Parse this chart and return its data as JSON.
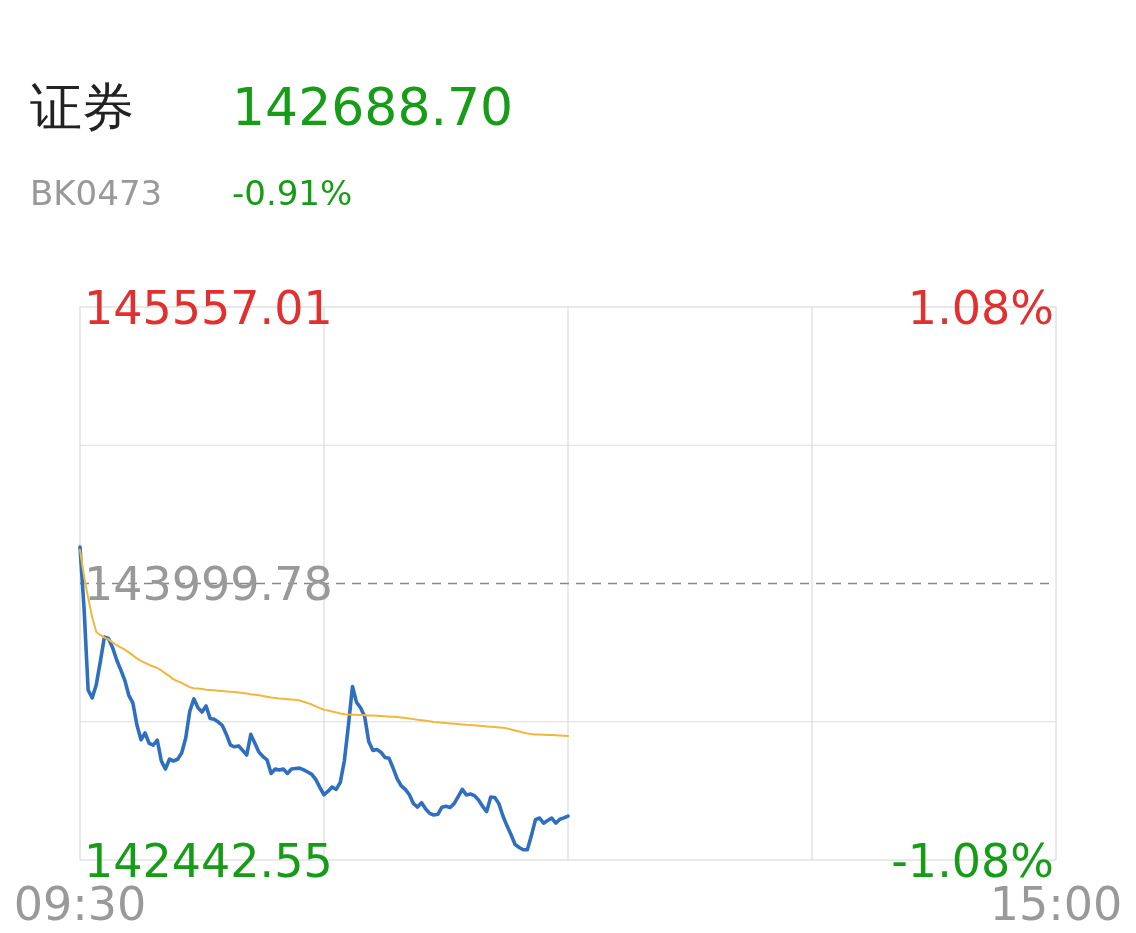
{
  "chart_data": {
    "type": "line",
    "title": "证券",
    "subtitle": "BK0473",
    "annotations": [
      "142688.70",
      "-0.91%"
    ],
    "categories": [
      "09:30",
      null,
      null,
      null,
      null,
      null,
      null,
      null,
      null,
      null,
      null,
      null,
      null,
      null,
      null,
      null,
      null,
      null,
      null,
      null,
      null,
      null,
      null,
      null,
      null,
      null,
      null,
      null,
      null,
      null,
      null,
      null,
      null,
      null,
      null,
      null,
      null,
      null,
      null,
      null,
      null,
      null,
      null,
      null,
      null,
      null,
      null,
      null,
      null,
      null,
      null,
      null,
      null,
      null,
      null,
      null,
      null,
      null,
      null,
      null,
      null,
      null,
      null,
      null,
      null,
      null,
      null,
      null,
      null,
      null,
      null,
      null,
      null,
      null,
      null,
      null,
      null,
      null,
      null,
      null,
      null,
      null,
      null,
      null,
      null,
      null,
      null,
      null,
      null,
      null,
      null,
      null,
      null,
      null,
      null,
      null,
      null,
      null,
      null,
      null,
      null,
      null,
      null,
      null,
      null,
      null,
      null,
      null,
      null,
      null,
      null,
      null,
      null,
      null,
      null,
      null,
      null,
      null,
      null,
      null,
      null,
      null,
      null,
      null,
      null,
      null,
      null,
      null,
      null,
      null,
      null,
      null,
      null,
      null,
      null,
      null,
      null,
      null,
      null,
      null,
      null,
      null,
      null,
      null,
      null,
      null,
      null,
      null,
      null,
      null,
      null,
      null,
      null,
      null,
      null,
      null,
      null,
      null,
      null,
      null,
      null,
      null,
      null,
      null,
      null,
      null,
      null,
      null,
      null,
      null,
      null,
      null,
      null,
      null,
      null,
      null,
      null,
      null,
      null,
      null,
      null,
      null,
      null,
      null,
      null,
      null,
      null,
      null,
      null,
      null,
      null,
      null,
      null,
      null,
      null,
      null,
      null,
      null,
      null,
      null,
      null,
      null,
      null,
      null,
      null,
      null,
      null,
      null,
      null,
      null,
      null,
      null,
      null,
      null,
      null,
      null,
      null,
      null,
      null,
      null,
      null,
      null,
      null,
      null,
      null,
      null,
      null,
      null,
      null,
      null,
      null,
      null,
      null,
      null,
      null,
      null,
      null,
      null,
      null,
      null,
      "15:00"
    ],
    "ylim": [
      142442.55,
      145557.01
    ],
    "yticks": [
      142442.55,
      {
        "value": 143221.17,
        "label": null
      },
      143999.78,
      {
        "value": 144778.4,
        "label": null
      },
      145557.01
    ],
    "y2lim": [
      -1.08,
      1.08
    ],
    "y2ticks": [
      {
        "value": -1.08,
        "label": "-1.08%"
      },
      {
        "value": 1.08,
        "label": "1.08%"
      }
    ],
    "grid": true,
    "ref_lines": [
      {
        "axis": "y",
        "value": 143999.78,
        "line_style": "dashed",
        "color": "#888888"
      }
    ],
    "series": [
      {
        "color": "#2f6fbf",
        "values": [
          144205,
          143860,
          143400,
          143355,
          143430,
          143560,
          143698,
          143690,
          143640,
          143570,
          143515,
          143456,
          143370,
          143327,
          143203,
          143120,
          143158,
          143100,
          143090,
          143118,
          143000,
          142955,
          143010,
          143000,
          143010,
          143045,
          143130,
          143280,
          143350,
          143300,
          143276,
          143310,
          143240,
          143235,
          143220,
          143200,
          143150,
          143090,
          143080,
          143085,
          143060,
          143034,
          143150,
          143100,
          143050,
          143025,
          143006,
          142930,
          142955,
          142949,
          142955,
          142930,
          142955,
          142958,
          142960,
          142950,
          142938,
          142925,
          142895,
          142850,
          142810,
          142830,
          142854,
          142840,
          142880,
          143000,
          143200,
          143420,
          143330,
          143300,
          143250,
          143110,
          143060,
          143065,
          143050,
          143020,
          143015,
          142960,
          142900,
          142860,
          142840,
          142810,
          142760,
          142741,
          142765,
          142730,
          142705,
          142696,
          142700,
          142740,
          142745,
          142738,
          142760,
          142800,
          142840,
          142809,
          142814,
          142805,
          142780,
          142745,
          142715,
          142797,
          142795,
          142760,
          142690,
          142635,
          142585,
          142530,
          142513,
          142500,
          142500,
          142580,
          142670,
          142679,
          142650,
          142665,
          142679,
          142650,
          142672,
          142680,
          142690,
          null,
          null,
          null,
          null,
          null,
          null,
          null,
          null,
          null,
          null,
          null,
          null,
          null,
          null,
          null,
          null,
          null,
          null,
          null,
          null,
          null,
          null,
          null,
          null,
          null,
          null,
          null,
          null,
          null,
          null,
          null,
          null,
          null,
          null,
          null,
          null,
          null,
          null,
          null,
          null,
          null,
          null,
          null,
          null,
          null,
          null,
          null,
          null,
          null,
          null,
          null,
          null,
          null,
          null,
          null,
          null,
          null,
          null,
          null,
          null,
          null,
          null,
          null,
          null,
          null,
          null,
          null,
          null,
          null,
          null,
          null,
          null,
          null,
          null,
          null,
          null,
          null,
          null,
          null,
          null,
          null,
          null,
          null,
          null,
          null,
          null,
          null,
          null,
          null,
          null,
          null,
          null,
          null,
          null,
          null,
          null,
          null,
          null,
          null,
          null,
          null,
          null,
          null,
          null,
          null,
          null,
          null,
          null,
          null,
          null,
          null,
          null,
          null,
          null,
          null,
          null,
          null,
          null,
          null,
          null
        ]
      },
      {
        "color": "#f2b63c",
        "values": [
          144188,
          144040,
          143920,
          143810,
          143727,
          143710,
          143695,
          143685,
          143668,
          143652,
          143640,
          143627,
          143612,
          143595,
          143578,
          143564,
          143553,
          143542,
          143532,
          143524,
          143510,
          143494,
          143478,
          143460,
          143450,
          143440,
          143428,
          143416,
          143410,
          143408,
          143405,
          143402,
          143400,
          143398,
          143396,
          143394,
          143392,
          143390,
          143389,
          143386,
          143383,
          143380,
          143376,
          143373,
          143370,
          143366,
          143362,
          143358,
          143355,
          143352,
          143350,
          143348,
          143346,
          143345,
          143341,
          143334,
          143326,
          143318,
          143308,
          143298,
          143288,
          143284,
          143279,
          143274,
          143268,
          143264,
          143262,
          143261,
          143260,
          143259,
          143258,
          143257,
          143256,
          143255,
          143254,
          143252,
          143250,
          143249,
          143248,
          143245,
          143242,
          143239,
          143236,
          143233,
          143230,
          143227,
          143224,
          143220,
          143218,
          143216,
          143214,
          143212,
          143210,
          143208,
          143206,
          143204,
          143203,
          143201,
          143199,
          143197,
          143195,
          143193,
          143191,
          143189,
          143187,
          143183,
          143178,
          143172,
          143166,
          143160,
          143155,
          143152,
          143150,
          143149,
          143148,
          143147,
          143146,
          143145,
          143144,
          143143,
          143141,
          null,
          null,
          null,
          null,
          null,
          null,
          null,
          null,
          null,
          null,
          null,
          null,
          null,
          null,
          null,
          null,
          null,
          null,
          null,
          null,
          null,
          null,
          null,
          null,
          null,
          null,
          null,
          null,
          null,
          null,
          null,
          null,
          null,
          null,
          null,
          null,
          null,
          null,
          null,
          null,
          null,
          null,
          null,
          null,
          null,
          null,
          null,
          null,
          null,
          null,
          null,
          null,
          null,
          null,
          null,
          null,
          null,
          null,
          null,
          null,
          null,
          null,
          null,
          null,
          null,
          null,
          null,
          null,
          null,
          null,
          null,
          null,
          null,
          null,
          null,
          null,
          null,
          null,
          null,
          null,
          null,
          null,
          null,
          null,
          null,
          null,
          null,
          null,
          null,
          null,
          null,
          null,
          null,
          null,
          null,
          null,
          null,
          null,
          null,
          null,
          null,
          null,
          null,
          null,
          null,
          null,
          null,
          null,
          null,
          null,
          null,
          null,
          null,
          null,
          null,
          null,
          null,
          null,
          null,
          null
        ]
      }
    ]
  }
}
